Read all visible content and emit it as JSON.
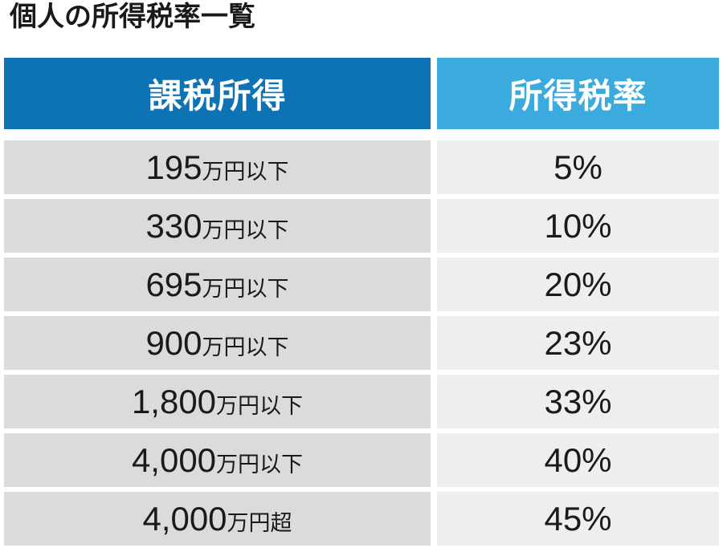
{
  "title": "個人の所得税率一覧",
  "colors": {
    "header_left_bg": "#0d73b5",
    "header_right_bg": "#3baadc",
    "row_left_bg": "#dbdbdb",
    "row_right_bg": "#eeeeee",
    "header_text": "#ffffff",
    "body_text": "#1a1a1a",
    "background": "#ffffff"
  },
  "table": {
    "headers": [
      {
        "label": "課税所得"
      },
      {
        "label": "所得税率"
      }
    ],
    "rows": [
      {
        "amount": "195",
        "unit": "万円以下",
        "rate": "5%"
      },
      {
        "amount": "330",
        "unit": "万円以下",
        "rate": "10%"
      },
      {
        "amount": "695",
        "unit": "万円以下",
        "rate": "20%"
      },
      {
        "amount": "900",
        "unit": "万円以下",
        "rate": "23%"
      },
      {
        "amount": "1,800",
        "unit": "万円以下",
        "rate": "33%"
      },
      {
        "amount": "4,000",
        "unit": "万円以下",
        "rate": "40%"
      },
      {
        "amount": "4,000",
        "unit": "万円超",
        "rate": "45%"
      }
    ]
  },
  "chart_data": {
    "type": "table",
    "title": "個人の所得税率一覧",
    "columns": [
      "課税所得",
      "所得税率"
    ],
    "rows": [
      [
        "195万円以下",
        "5%"
      ],
      [
        "330万円以下",
        "10%"
      ],
      [
        "695万円以下",
        "20%"
      ],
      [
        "900万円以下",
        "23%"
      ],
      [
        "1,800万円以下",
        "33%"
      ],
      [
        "4,000万円以下",
        "40%"
      ],
      [
        "4,000万円超",
        "45%"
      ]
    ]
  }
}
